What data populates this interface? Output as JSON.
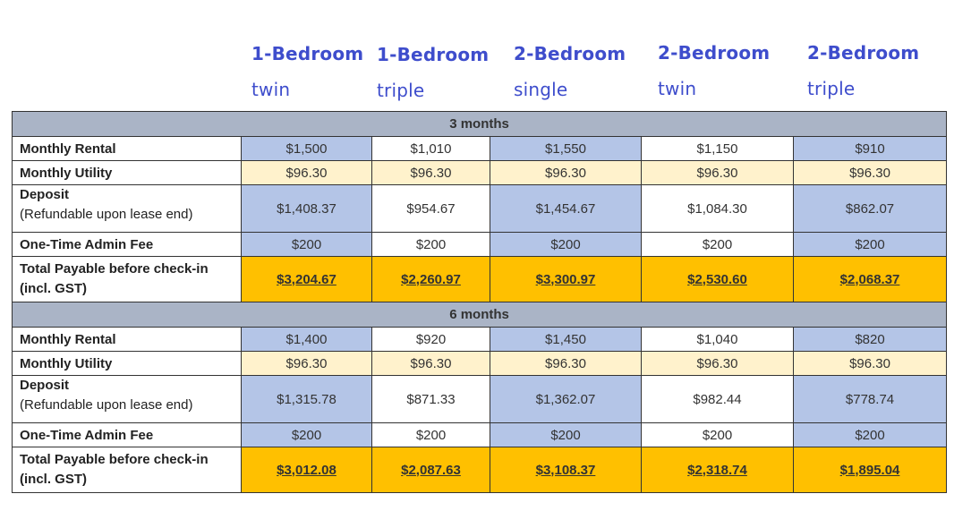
{
  "columns": [
    {
      "line1": "1-Bedroom",
      "line2": "twin"
    },
    {
      "line1": "1-Bedroom",
      "line2": "triple"
    },
    {
      "line1": "2-Bedroom",
      "line2": "single"
    },
    {
      "line1": "2-Bedroom",
      "line2": "twin"
    },
    {
      "line1": "2-Bedroom",
      "line2": "triple"
    }
  ],
  "labels": {
    "monthly_rental": "Monthly Rental",
    "monthly_utility": "Monthly Utility",
    "deposit": "Deposit",
    "deposit_note": "(Refundable upon lease end)",
    "admin_fee": "One-Time Admin Fee",
    "total_line1": "Total Payable before check-in",
    "total_line2": "(incl. GST)"
  },
  "periods": [
    {
      "name": "3 months",
      "monthly_rental": [
        "$1,500",
        "$1,010",
        "$1,550",
        "$1,150",
        "$910"
      ],
      "monthly_utility": [
        "$96.30",
        "$96.30",
        "$96.30",
        "$96.30",
        "$96.30"
      ],
      "deposit": [
        "$1,408.37",
        "$954.67",
        "$1,454.67",
        "$1,084.30",
        "$862.07"
      ],
      "admin_fee": [
        "$200",
        "$200",
        "$200",
        "$200",
        "$200"
      ],
      "total": [
        "$3,204.67",
        "$2,260.97",
        "$3,300.97",
        "$2,530.60",
        "$2,068.37"
      ]
    },
    {
      "name": "6 months",
      "monthly_rental": [
        "$1,400",
        "$920",
        "$1,450",
        "$1,040",
        "$820"
      ],
      "monthly_utility": [
        "$96.30",
        "$96.30",
        "$96.30",
        "$96.30",
        "$96.30"
      ],
      "deposit": [
        "$1,315.78",
        "$871.33",
        "$1,362.07",
        "$982.44",
        "$778.74"
      ],
      "admin_fee": [
        "$200",
        "$200",
        "$200",
        "$200",
        "$200"
      ],
      "total": [
        "$3,012.08",
        "$2,087.63",
        "$3,108.37",
        "$2,318.74",
        "$1,895.04"
      ]
    }
  ],
  "colors": {
    "header_text": "#3e4dcc",
    "period_band": "#aab4c6",
    "blue_cell": "#b4c5e7",
    "utility_cell": "#fff2cc",
    "total_cell": "#ffc000"
  }
}
